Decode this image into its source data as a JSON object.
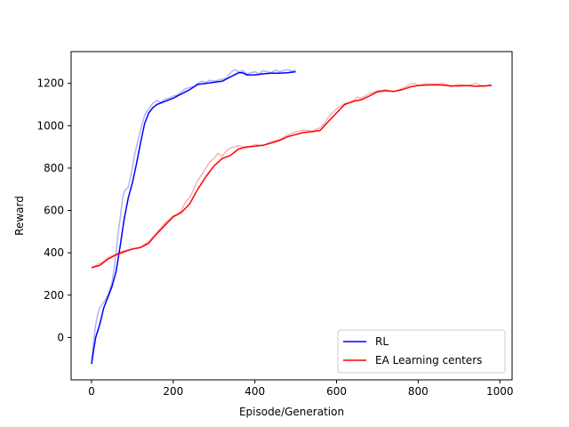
{
  "chart_data": {
    "type": "line",
    "title": "",
    "xlabel": "Episode/Generation",
    "ylabel": "Reward",
    "xlim": [
      -50,
      1030
    ],
    "ylim": [
      -200,
      1350
    ],
    "x_ticks": [
      0,
      200,
      400,
      600,
      800,
      1000
    ],
    "y_ticks": [
      0,
      200,
      400,
      600,
      800,
      1000,
      1200
    ],
    "grid": false,
    "legend_position": "lower-right",
    "series": [
      {
        "name": "RL",
        "color": "#0000ff",
        "raw_color": "#b3b3f5",
        "smoothed": [
          [
            0,
            -125
          ],
          [
            5,
            -60
          ],
          [
            10,
            0
          ],
          [
            20,
            60
          ],
          [
            30,
            140
          ],
          [
            40,
            190
          ],
          [
            50,
            240
          ],
          [
            60,
            310
          ],
          [
            70,
            430
          ],
          [
            80,
            560
          ],
          [
            90,
            660
          ],
          [
            100,
            730
          ],
          [
            110,
            820
          ],
          [
            120,
            920
          ],
          [
            130,
            1010
          ],
          [
            140,
            1060
          ],
          [
            150,
            1085
          ],
          [
            160,
            1100
          ],
          [
            180,
            1115
          ],
          [
            200,
            1130
          ],
          [
            220,
            1150
          ],
          [
            240,
            1170
          ],
          [
            260,
            1195
          ],
          [
            280,
            1200
          ],
          [
            300,
            1205
          ],
          [
            320,
            1210
          ],
          [
            340,
            1230
          ],
          [
            360,
            1250
          ],
          [
            370,
            1250
          ],
          [
            380,
            1240
          ],
          [
            400,
            1240
          ],
          [
            420,
            1245
          ],
          [
            440,
            1248
          ],
          [
            460,
            1248
          ],
          [
            480,
            1250
          ],
          [
            500,
            1255
          ]
        ],
        "raw": [
          [
            0,
            -110
          ],
          [
            5,
            -20
          ],
          [
            10,
            60
          ],
          [
            15,
            110
          ],
          [
            20,
            140
          ],
          [
            30,
            165
          ],
          [
            40,
            200
          ],
          [
            50,
            260
          ],
          [
            55,
            320
          ],
          [
            60,
            400
          ],
          [
            65,
            490
          ],
          [
            70,
            560
          ],
          [
            75,
            640
          ],
          [
            80,
            690
          ],
          [
            90,
            710
          ],
          [
            100,
            800
          ],
          [
            105,
            860
          ],
          [
            110,
            900
          ],
          [
            120,
            980
          ],
          [
            130,
            1050
          ],
          [
            140,
            1080
          ],
          [
            150,
            1105
          ],
          [
            160,
            1120
          ],
          [
            170,
            1110
          ],
          [
            180,
            1125
          ],
          [
            190,
            1130
          ],
          [
            200,
            1140
          ],
          [
            210,
            1145
          ],
          [
            220,
            1160
          ],
          [
            230,
            1175
          ],
          [
            240,
            1180
          ],
          [
            250,
            1185
          ],
          [
            260,
            1200
          ],
          [
            270,
            1210
          ],
          [
            280,
            1205
          ],
          [
            290,
            1215
          ],
          [
            300,
            1210
          ],
          [
            310,
            1215
          ],
          [
            320,
            1220
          ],
          [
            330,
            1225
          ],
          [
            340,
            1250
          ],
          [
            350,
            1265
          ],
          [
            360,
            1255
          ],
          [
            370,
            1260
          ],
          [
            380,
            1245
          ],
          [
            390,
            1250
          ],
          [
            400,
            1255
          ],
          [
            410,
            1245
          ],
          [
            420,
            1260
          ],
          [
            430,
            1255
          ],
          [
            440,
            1250
          ],
          [
            450,
            1262
          ],
          [
            460,
            1255
          ],
          [
            470,
            1260
          ],
          [
            480,
            1265
          ],
          [
            490,
            1258
          ],
          [
            500,
            1262
          ]
        ]
      },
      {
        "name": "EA Learning centers",
        "color": "#ff0000",
        "raw_color": "#f5b3b3",
        "smoothed": [
          [
            0,
            330
          ],
          [
            20,
            340
          ],
          [
            40,
            370
          ],
          [
            60,
            390
          ],
          [
            80,
            405
          ],
          [
            100,
            418
          ],
          [
            120,
            425
          ],
          [
            140,
            445
          ],
          [
            160,
            490
          ],
          [
            180,
            530
          ],
          [
            200,
            570
          ],
          [
            220,
            590
          ],
          [
            240,
            630
          ],
          [
            260,
            700
          ],
          [
            280,
            760
          ],
          [
            300,
            810
          ],
          [
            320,
            845
          ],
          [
            340,
            860
          ],
          [
            360,
            890
          ],
          [
            380,
            900
          ],
          [
            400,
            903
          ],
          [
            420,
            908
          ],
          [
            440,
            918
          ],
          [
            460,
            930
          ],
          [
            480,
            948
          ],
          [
            500,
            958
          ],
          [
            520,
            968
          ],
          [
            540,
            972
          ],
          [
            560,
            978
          ],
          [
            580,
            1020
          ],
          [
            600,
            1060
          ],
          [
            620,
            1100
          ],
          [
            640,
            1115
          ],
          [
            660,
            1122
          ],
          [
            680,
            1140
          ],
          [
            700,
            1160
          ],
          [
            720,
            1165
          ],
          [
            740,
            1162
          ],
          [
            760,
            1170
          ],
          [
            780,
            1183
          ],
          [
            800,
            1190
          ],
          [
            820,
            1192
          ],
          [
            840,
            1193
          ],
          [
            860,
            1192
          ],
          [
            880,
            1188
          ],
          [
            900,
            1188
          ],
          [
            920,
            1190
          ],
          [
            940,
            1186
          ],
          [
            960,
            1188
          ],
          [
            980,
            1190
          ]
        ],
        "raw": [
          [
            0,
            325
          ],
          [
            10,
            340
          ],
          [
            20,
            350
          ],
          [
            30,
            360
          ],
          [
            40,
            378
          ],
          [
            50,
            385
          ],
          [
            60,
            395
          ],
          [
            70,
            405
          ],
          [
            80,
            410
          ],
          [
            90,
            415
          ],
          [
            100,
            418
          ],
          [
            120,
            425
          ],
          [
            140,
            455
          ],
          [
            160,
            495
          ],
          [
            180,
            540
          ],
          [
            200,
            575
          ],
          [
            210,
            580
          ],
          [
            220,
            600
          ],
          [
            230,
            640
          ],
          [
            240,
            660
          ],
          [
            250,
            700
          ],
          [
            260,
            740
          ],
          [
            270,
            770
          ],
          [
            280,
            800
          ],
          [
            290,
            830
          ],
          [
            300,
            845
          ],
          [
            310,
            870
          ],
          [
            320,
            855
          ],
          [
            330,
            880
          ],
          [
            340,
            895
          ],
          [
            350,
            900
          ],
          [
            360,
            905
          ],
          [
            380,
            895
          ],
          [
            400,
            912
          ],
          [
            420,
            905
          ],
          [
            440,
            925
          ],
          [
            460,
            935
          ],
          [
            480,
            955
          ],
          [
            500,
            970
          ],
          [
            520,
            980
          ],
          [
            540,
            975
          ],
          [
            560,
            990
          ],
          [
            570,
            1010
          ],
          [
            580,
            1040
          ],
          [
            590,
            1060
          ],
          [
            600,
            1080
          ],
          [
            620,
            1105
          ],
          [
            640,
            1110
          ],
          [
            650,
            1135
          ],
          [
            660,
            1130
          ],
          [
            680,
            1150
          ],
          [
            700,
            1165
          ],
          [
            720,
            1170
          ],
          [
            740,
            1160
          ],
          [
            760,
            1175
          ],
          [
            780,
            1195
          ],
          [
            790,
            1200
          ],
          [
            800,
            1190
          ],
          [
            820,
            1200
          ],
          [
            840,
            1195
          ],
          [
            860,
            1200
          ],
          [
            880,
            1185
          ],
          [
            900,
            1195
          ],
          [
            920,
            1188
          ],
          [
            940,
            1200
          ],
          [
            960,
            1185
          ],
          [
            980,
            1195
          ]
        ]
      }
    ]
  }
}
